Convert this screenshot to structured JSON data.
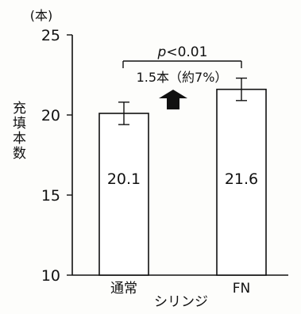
{
  "chart_data": {
    "type": "bar",
    "categories": [
      "通常",
      "FN"
    ],
    "values": [
      20.1,
      21.6
    ],
    "error": [
      0.7,
      0.7
    ],
    "ylim": [
      10,
      25
    ],
    "yticks": [
      10,
      15,
      20,
      25
    ],
    "ylabel": "充填本数",
    "yunit": "(本)",
    "xlabel": "シリンジ",
    "grid": false,
    "annotations": {
      "significance_p": "p",
      "significance_rest": "<0.01",
      "difference": "1.5本（約7%）"
    }
  }
}
